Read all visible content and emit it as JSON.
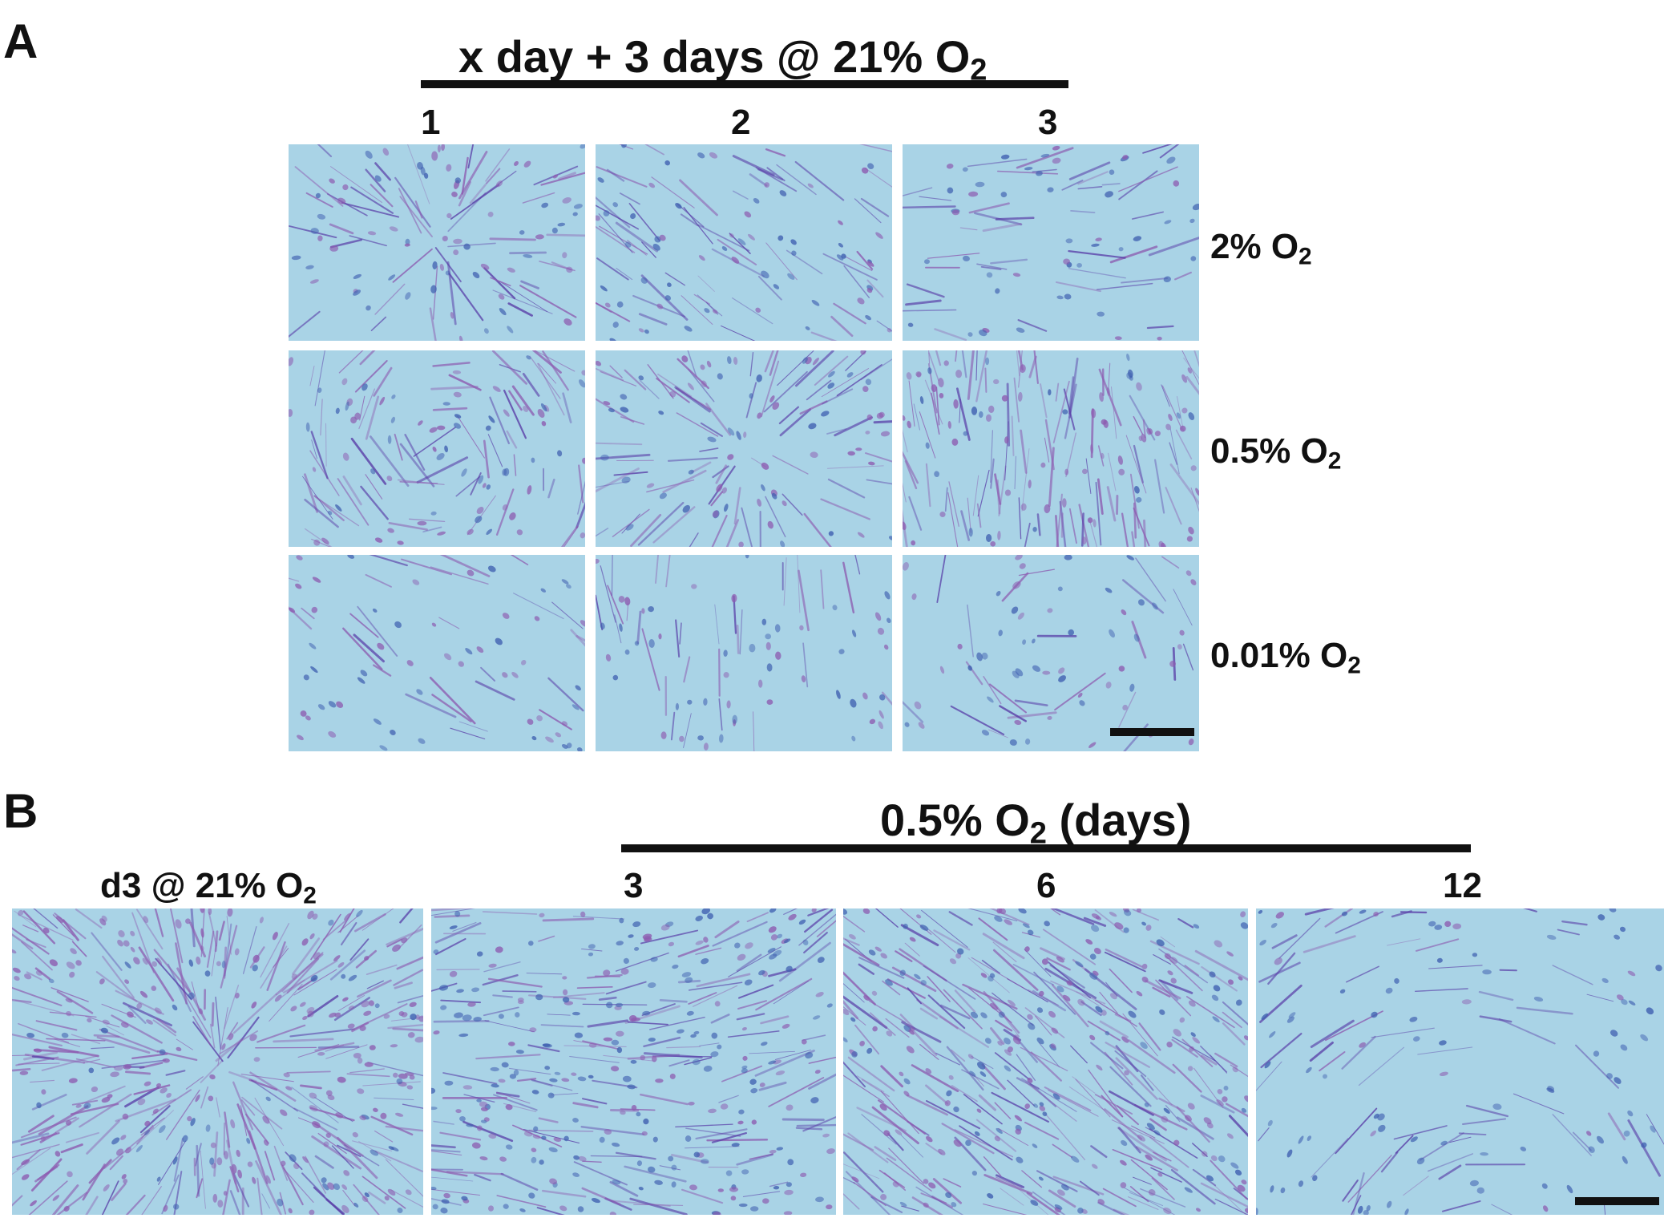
{
  "figure": {
    "panel_a": {
      "letter": "A",
      "title": "x day + 3 days @ 21% O",
      "title_sub": "2",
      "columns": [
        "1",
        "2",
        "3"
      ],
      "rows": [
        {
          "label": "2% O",
          "sub": "2"
        },
        {
          "label": "0.5% O",
          "sub": "2"
        },
        {
          "label": "0.01% O",
          "sub": "2"
        }
      ]
    },
    "panel_b": {
      "letter": "B",
      "title": "0.5% O",
      "title_sub": "2",
      "title_suffix": " (days)",
      "control_label": "d3 @ 21% O",
      "control_sub": "2",
      "columns": [
        "3",
        "6",
        "12"
      ]
    },
    "colors": {
      "stain_background": "#a9d3e6",
      "stain_fiber": "#5a3fa8",
      "stain_nucleus": "#3f5fb0",
      "stain_purple": "#8d5bb0"
    }
  }
}
